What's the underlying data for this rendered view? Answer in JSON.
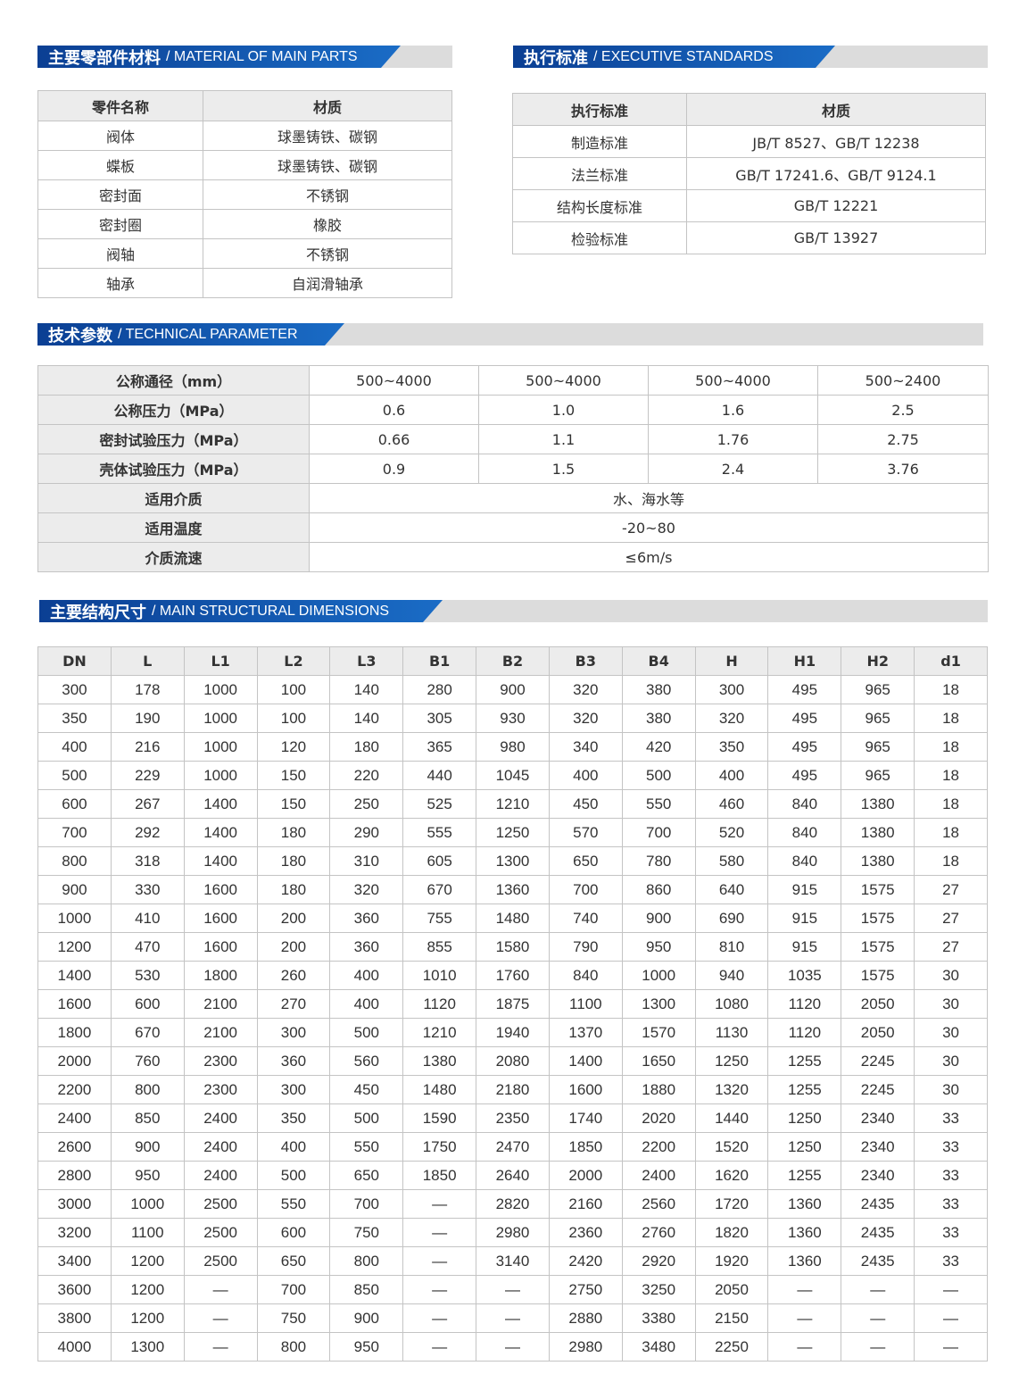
{
  "colors": {
    "accent": "#1a6cc6",
    "header_bg": "#ececec",
    "band": "#dcdcdc"
  },
  "materials": {
    "title_cn": "主要零部件材料",
    "title_en": "/ MATERIAL OF MAIN PARTS",
    "headers": [
      "零件名称",
      "材质"
    ],
    "rows": [
      [
        "阀体",
        "球墨铸铁、碳钢"
      ],
      [
        "蝶板",
        "球墨铸铁、碳钢"
      ],
      [
        "密封面",
        "不锈钢"
      ],
      [
        "密封圈",
        "橡胶"
      ],
      [
        "阀轴",
        "不锈钢"
      ],
      [
        "轴承",
        "自润滑轴承"
      ]
    ]
  },
  "standards": {
    "title_cn": "执行标准",
    "title_en": "/ EXECUTIVE STANDARDS",
    "headers": [
      "执行标准",
      "材质"
    ],
    "rows": [
      [
        "制造标准",
        "JB/T 8527、GB/T 12238"
      ],
      [
        "法兰标准",
        "GB/T 17241.6、GB/T 9124.1"
      ],
      [
        "结构长度标准",
        "GB/T 12221"
      ],
      [
        "检验标准",
        "GB/T 13927"
      ]
    ]
  },
  "technical": {
    "title_cn": "技术参数",
    "title_en": "/ TECHNICAL PARAMETER",
    "rows": [
      [
        "公称通径（mm）",
        "500~4000",
        "500~4000",
        "500~4000",
        "500~2400"
      ],
      [
        "公称压力（MPa）",
        "0.6",
        "1.0",
        "1.6",
        "2.5"
      ],
      [
        "密封试验压力（MPa）",
        "0.66",
        "1.1",
        "1.76",
        "2.75"
      ],
      [
        "壳体试验压力（MPa）",
        "0.9",
        "1.5",
        "2.4",
        "3.76"
      ],
      [
        "适用介质",
        "水、海水等"
      ],
      [
        "适用温度",
        "-20~80"
      ],
      [
        "介质流速",
        "≤6m/s"
      ]
    ]
  },
  "dimensions": {
    "title_cn": "主要结构尺寸",
    "title_en": "/ MAIN STRUCTURAL DIMENSIONS",
    "headers": [
      "DN",
      "L",
      "L1",
      "L2",
      "L3",
      "B1",
      "B2",
      "B3",
      "B4",
      "H",
      "H1",
      "H2",
      "d1"
    ],
    "rows": [
      [
        "300",
        "178",
        "1000",
        "100",
        "140",
        "280",
        "900",
        "320",
        "380",
        "300",
        "495",
        "965",
        "18"
      ],
      [
        "350",
        "190",
        "1000",
        "100",
        "140",
        "305",
        "930",
        "320",
        "380",
        "320",
        "495",
        "965",
        "18"
      ],
      [
        "400",
        "216",
        "1000",
        "120",
        "180",
        "365",
        "980",
        "340",
        "420",
        "350",
        "495",
        "965",
        "18"
      ],
      [
        "500",
        "229",
        "1000",
        "150",
        "220",
        "440",
        "1045",
        "400",
        "500",
        "400",
        "495",
        "965",
        "18"
      ],
      [
        "600",
        "267",
        "1400",
        "150",
        "250",
        "525",
        "1210",
        "450",
        "550",
        "460",
        "840",
        "1380",
        "18"
      ],
      [
        "700",
        "292",
        "1400",
        "180",
        "290",
        "555",
        "1250",
        "570",
        "700",
        "520",
        "840",
        "1380",
        "18"
      ],
      [
        "800",
        "318",
        "1400",
        "180",
        "310",
        "605",
        "1300",
        "650",
        "780",
        "580",
        "840",
        "1380",
        "18"
      ],
      [
        "900",
        "330",
        "1600",
        "180",
        "320",
        "670",
        "1360",
        "700",
        "860",
        "640",
        "915",
        "1575",
        "27"
      ],
      [
        "1000",
        "410",
        "1600",
        "200",
        "360",
        "755",
        "1480",
        "740",
        "900",
        "690",
        "915",
        "1575",
        "27"
      ],
      [
        "1200",
        "470",
        "1600",
        "200",
        "360",
        "855",
        "1580",
        "790",
        "950",
        "810",
        "915",
        "1575",
        "27"
      ],
      [
        "1400",
        "530",
        "1800",
        "260",
        "400",
        "1010",
        "1760",
        "840",
        "1000",
        "940",
        "1035",
        "1575",
        "30"
      ],
      [
        "1600",
        "600",
        "2100",
        "270",
        "400",
        "1120",
        "1875",
        "1100",
        "1300",
        "1080",
        "1120",
        "2050",
        "30"
      ],
      [
        "1800",
        "670",
        "2100",
        "300",
        "500",
        "1210",
        "1940",
        "1370",
        "1570",
        "1130",
        "1120",
        "2050",
        "30"
      ],
      [
        "2000",
        "760",
        "2300",
        "360",
        "560",
        "1380",
        "2080",
        "1400",
        "1650",
        "1250",
        "1255",
        "2245",
        "30"
      ],
      [
        "2200",
        "800",
        "2300",
        "300",
        "450",
        "1480",
        "2180",
        "1600",
        "1880",
        "1320",
        "1255",
        "2245",
        "30"
      ],
      [
        "2400",
        "850",
        "2400",
        "350",
        "500",
        "1590",
        "2350",
        "1740",
        "2020",
        "1440",
        "1250",
        "2340",
        "33"
      ],
      [
        "2600",
        "900",
        "2400",
        "400",
        "550",
        "1750",
        "2470",
        "1850",
        "2200",
        "1520",
        "1250",
        "2340",
        "33"
      ],
      [
        "2800",
        "950",
        "2400",
        "500",
        "650",
        "1850",
        "2640",
        "2000",
        "2400",
        "1620",
        "1255",
        "2340",
        "33"
      ],
      [
        "3000",
        "1000",
        "2500",
        "550",
        "700",
        "—",
        "2820",
        "2160",
        "2560",
        "1720",
        "1360",
        "2435",
        "33"
      ],
      [
        "3200",
        "1100",
        "2500",
        "600",
        "750",
        "—",
        "2980",
        "2360",
        "2760",
        "1820",
        "1360",
        "2435",
        "33"
      ],
      [
        "3400",
        "1200",
        "2500",
        "650",
        "800",
        "—",
        "3140",
        "2420",
        "2920",
        "1920",
        "1360",
        "2435",
        "33"
      ],
      [
        "3600",
        "1200",
        "—",
        "700",
        "850",
        "—",
        "—",
        "2750",
        "3250",
        "2050",
        "—",
        "—",
        "—"
      ],
      [
        "3800",
        "1200",
        "—",
        "750",
        "900",
        "—",
        "—",
        "2880",
        "3380",
        "2150",
        "—",
        "—",
        "—"
      ],
      [
        "4000",
        "1300",
        "—",
        "800",
        "950",
        "—",
        "—",
        "2980",
        "3480",
        "2250",
        "—",
        "—",
        "—"
      ]
    ]
  }
}
